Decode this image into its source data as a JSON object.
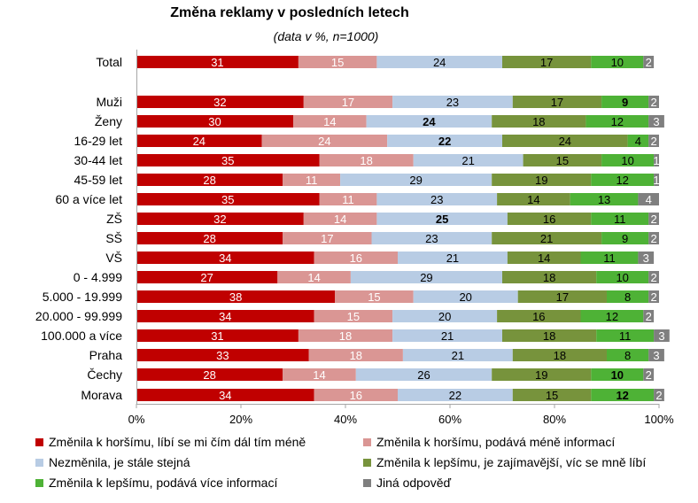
{
  "chart_data": {
    "type": "bar",
    "orientation": "horizontal",
    "stacked": true,
    "percent": true,
    "title": "Změna reklamy v posledních letech",
    "subtitle": "(data v %, n=1000)",
    "categories": [
      "Total",
      "Muži",
      "Ženy",
      "16-29 let",
      "30-44 let",
      "45-59 let",
      "60 a více let",
      "ZŠ",
      "SŠ",
      "VŠ",
      "0 - 4.999",
      "5.000 - 19.999",
      "20.000 - 99.999",
      "100.000 a více",
      "Praha",
      "Čechy",
      "Morava"
    ],
    "series": [
      {
        "name": "Změnila k horšímu, líbí se mi čím dál tím méně",
        "color": "#C00000",
        "values": [
          31,
          32,
          30,
          24,
          35,
          28,
          35,
          32,
          28,
          34,
          27,
          38,
          34,
          31,
          33,
          28,
          34
        ]
      },
      {
        "name": "Změnila k horšímu, podává méně informací",
        "color": "#DA9694",
        "values": [
          15,
          17,
          14,
          24,
          18,
          11,
          11,
          14,
          17,
          16,
          14,
          15,
          15,
          18,
          18,
          14,
          16
        ]
      },
      {
        "name": "Nezměnila, je stále stejná",
        "color": "#B8CCE4",
        "values": [
          24,
          23,
          24,
          22,
          21,
          29,
          23,
          25,
          23,
          21,
          29,
          20,
          20,
          21,
          21,
          26,
          22
        ]
      },
      {
        "name": "Změnila k lepšímu, je zajímavější, víc se mně líbí",
        "color": "#77933C",
        "values": [
          17,
          17,
          18,
          24,
          15,
          19,
          14,
          16,
          21,
          14,
          18,
          17,
          16,
          18,
          18,
          19,
          15
        ]
      },
      {
        "name": "Změnila k lepšímu, podává více informací",
        "color": "#4EB236",
        "values": [
          10,
          9,
          12,
          4,
          10,
          12,
          13,
          11,
          9,
          11,
          10,
          8,
          12,
          11,
          8,
          10,
          12
        ]
      },
      {
        "name": "Jiná odpověď",
        "color": "#7F7F7F",
        "values": [
          2,
          2,
          3,
          2,
          1,
          1,
          4,
          2,
          2,
          3,
          2,
          2,
          2,
          3,
          3,
          2,
          2
        ]
      }
    ],
    "bold_labels": [
      [
        1,
        4
      ],
      [
        2,
        2
      ],
      [
        3,
        2
      ],
      [
        7,
        2
      ],
      [
        15,
        4
      ],
      [
        16,
        4
      ]
    ],
    "xlim": [
      0,
      100
    ],
    "x_ticks": [
      "0%",
      "20%",
      "40%",
      "60%",
      "80%",
      "100%"
    ],
    "grid": false,
    "legend_position": "bottom"
  }
}
